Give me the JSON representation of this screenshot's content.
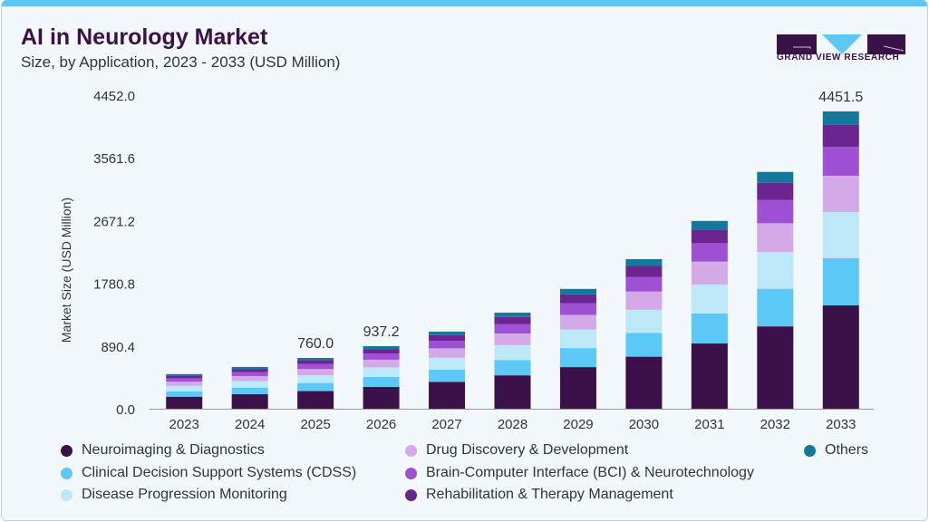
{
  "header": {
    "title": "AI in Neurology Market",
    "subtitle": "Size, by Application, 2023 - 2033 (USD Million)",
    "logo_text": "GRAND VIEW RESEARCH"
  },
  "chart_data": {
    "type": "bar",
    "stacked": true,
    "title": "AI in Neurology Market",
    "ylabel": "Market Size (USD Million)",
    "xlabel": "",
    "ylim": [
      0,
      4695
    ],
    "yticks": [
      "0.0",
      "890.4",
      "1780.8",
      "2671.2",
      "3561.6",
      "4452.0"
    ],
    "ytick_values": [
      0,
      890.4,
      1780.8,
      2671.2,
      3561.6,
      4452.0
    ],
    "categories": [
      "2023",
      "2024",
      "2025",
      "2026",
      "2027",
      "2028",
      "2029",
      "2030",
      "2031",
      "2032",
      "2033"
    ],
    "series": [
      {
        "name": "Neuroimaging & Diagnostics",
        "color": "#3a1149",
        "values": [
          180,
          217,
          264,
          326,
          401,
          500,
          623,
          779,
          978,
          1233,
          1547
        ]
      },
      {
        "name": "Clinical Decision Support Systems (CDSS)",
        "color": "#5bc8f5",
        "values": [
          82,
          99,
          121,
          149,
          183,
          229,
          285,
          356,
          447,
          563,
          706
        ]
      },
      {
        "name": "Disease Progression Monitoring",
        "color": "#bde8f8",
        "values": [
          80,
          97,
          118,
          145,
          179,
          223,
          278,
          347,
          435,
          549,
          692
        ]
      },
      {
        "name": "Drug Discovery & Development",
        "color": "#d4a9e8",
        "values": [
          63,
          76,
          93,
          114,
          141,
          175,
          219,
          273,
          343,
          432,
          543
        ]
      },
      {
        "name": "Brain-Computer Interface (BCI) & Neurotechnology",
        "color": "#a050d4",
        "values": [
          51,
          61,
          74,
          92,
          113,
          141,
          176,
          219,
          275,
          347,
          434
        ]
      },
      {
        "name": "Rehabilitation & Therapy Management",
        "color": "#6a2590",
        "values": [
          38,
          46,
          55,
          68,
          84,
          105,
          131,
          163,
          205,
          259,
          326
        ]
      },
      {
        "name": "Others",
        "color": "#13789c",
        "values": [
          24,
          29,
          35,
          43,
          53,
          66,
          82,
          103,
          129,
          163,
          204
        ]
      }
    ],
    "annotations": [
      {
        "category": "2025",
        "label": "760.0"
      },
      {
        "category": "2026",
        "label": "937.2"
      },
      {
        "category": "2033",
        "label": "4451.5"
      }
    ],
    "legend_position": "bottom",
    "grid": false
  }
}
